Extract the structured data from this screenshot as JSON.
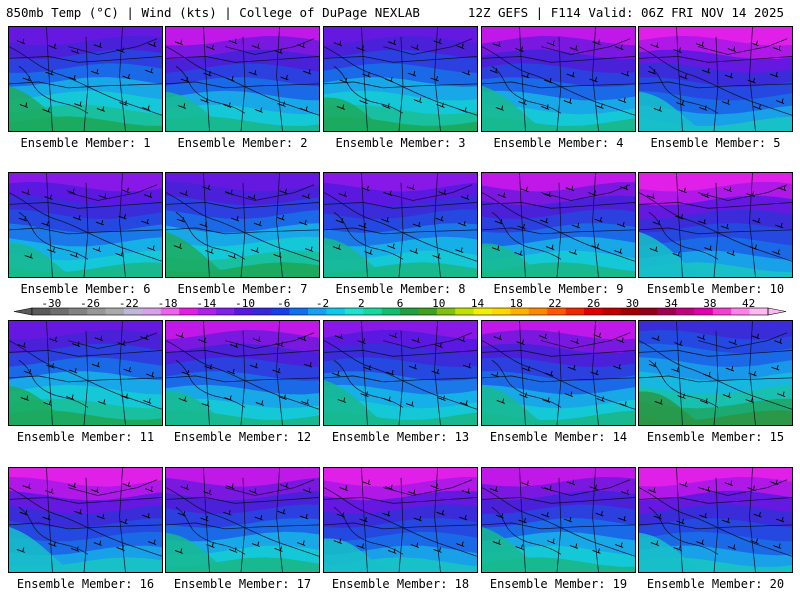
{
  "header": {
    "left": "850mb Temp (°C) | Wind (kts) | College of DuPage NEXLAB",
    "right": "12Z GEFS | F114 Valid: 06Z FRI NOV 14 2025"
  },
  "panels": [
    {
      "label": "Ensemble Member: 1",
      "variant": 0
    },
    {
      "label": "Ensemble Member: 2",
      "variant": 1
    },
    {
      "label": "Ensemble Member: 3",
      "variant": 0
    },
    {
      "label": "Ensemble Member: 4",
      "variant": 1
    },
    {
      "label": "Ensemble Member: 5",
      "variant": 2
    },
    {
      "label": "Ensemble Member: 6",
      "variant": 3
    },
    {
      "label": "Ensemble Member: 7",
      "variant": 0
    },
    {
      "label": "Ensemble Member: 8",
      "variant": 3
    },
    {
      "label": "Ensemble Member: 9",
      "variant": 1
    },
    {
      "label": "Ensemble Member: 10",
      "variant": 2
    },
    {
      "label": "Ensemble Member: 11",
      "variant": 0
    },
    {
      "label": "Ensemble Member: 12",
      "variant": 1
    },
    {
      "label": "Ensemble Member: 13",
      "variant": 3
    },
    {
      "label": "Ensemble Member: 14",
      "variant": 1
    },
    {
      "label": "Ensemble Member: 15",
      "variant": 4
    },
    {
      "label": "Ensemble Member: 16",
      "variant": 2
    },
    {
      "label": "Ensemble Member: 17",
      "variant": 1
    },
    {
      "label": "Ensemble Member: 18",
      "variant": 2
    },
    {
      "label": "Ensemble Member: 19",
      "variant": 1
    },
    {
      "label": "Ensemble Member: 20",
      "variant": 2
    }
  ],
  "colorbar": {
    "min": -32,
    "max": 44,
    "ticks": [
      "-30",
      "-26",
      "-22",
      "-18",
      "-14",
      "-10",
      "-6",
      "-2",
      "2",
      "6",
      "10",
      "14",
      "18",
      "22",
      "26",
      "30",
      "34",
      "38",
      "42"
    ],
    "colors": [
      "#5a5a5a",
      "#6e6e6e",
      "#828282",
      "#969696",
      "#aaaaaa",
      "#c0b8d8",
      "#d8a0e8",
      "#f060f0",
      "#e020e0",
      "#b020e8",
      "#8020e8",
      "#5818e0",
      "#3828d8",
      "#1840e8",
      "#1070f0",
      "#18a0f0",
      "#10c8e8",
      "#20e0d0",
      "#18d8a0",
      "#10c070",
      "#20a040",
      "#40a020",
      "#80c010",
      "#c0e000",
      "#f0f000",
      "#ffd800",
      "#ffb000",
      "#ff8800",
      "#ff5800",
      "#f02800",
      "#e00000",
      "#c00000",
      "#a00000",
      "#900018",
      "#a00050",
      "#c00080",
      "#e000b0",
      "#f040d0",
      "#ff80e8",
      "#ffb8f0"
    ]
  }
}
